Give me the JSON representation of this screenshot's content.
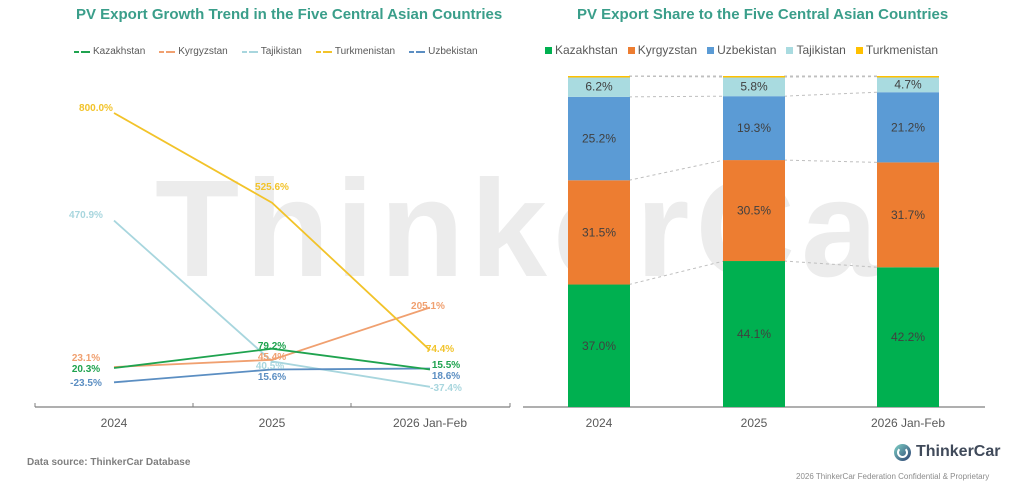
{
  "watermark": "ThinkerCar",
  "footer": {
    "data_source": "Data source: ThinkerCar Database",
    "brand": "ThinkerCar",
    "brand_icon": "thinkercar-logo-icon",
    "confidential": "2026 ThinkerCar Federation Confidential & Proprietary"
  },
  "colors": {
    "title": "#3a9e8a",
    "Kazakhstan": "#1fa34f",
    "Kyrgyzstan": "#f0a070",
    "Tajikistan": "#a8d6de",
    "Turkmenistan": "#f2c32a",
    "Uzbekistan": "#5b8ec2",
    "bar_Kazakhstan": "#00b050",
    "bar_Kyrgyzstan": "#ed7d31",
    "bar_Uzbekistan": "#5b9bd5",
    "bar_Tajikistan": "#a9dbe0",
    "bar_Turkmenistan": "#ffc000"
  },
  "chart_data": [
    {
      "type": "line",
      "title": "PV Export Growth Trend in the Five Central Asian Countries",
      "xlabel": "",
      "ylabel": "",
      "categories": [
        "2024",
        "2025",
        "2026 Jan-Feb"
      ],
      "legend_position": "top",
      "grid": false,
      "ylim": [
        -100,
        900
      ],
      "series": [
        {
          "name": "Kazakhstan",
          "values": [
            20.3,
            79.2,
            15.5
          ],
          "labels": [
            "20.3%",
            "79.2%",
            "15.5%"
          ]
        },
        {
          "name": "Kyrgyzstan",
          "values": [
            23.1,
            45.4,
            205.1
          ],
          "labels": [
            "23.1%",
            "45.4%",
            "205.1%"
          ]
        },
        {
          "name": "Tajikistan",
          "values": [
            470.9,
            40.5,
            -37.4
          ],
          "labels": [
            "470.9%",
            "40.5%",
            "-37.4%"
          ]
        },
        {
          "name": "Turkmenistan",
          "values": [
            800.0,
            525.6,
            74.4
          ],
          "labels": [
            "800.0%",
            "525.6%",
            "74.4%"
          ]
        },
        {
          "name": "Uzbekistan",
          "values": [
            -23.5,
            15.6,
            18.6
          ],
          "labels": [
            "-23.5%",
            "15.6%",
            "18.6%"
          ]
        }
      ]
    },
    {
      "type": "bar",
      "stacked": true,
      "title": "PV Export Share to the Five Central Asian Countries",
      "xlabel": "",
      "ylabel": "",
      "categories": [
        "2024",
        "2025",
        "2026 Jan-Feb"
      ],
      "legend_position": "top",
      "grid": false,
      "ylim": [
        0,
        100
      ],
      "series": [
        {
          "name": "Kazakhstan",
          "values": [
            37.0,
            44.1,
            42.2
          ],
          "labels": [
            "37.0%",
            "44.1%",
            "42.2%"
          ]
        },
        {
          "name": "Kyrgyzstan",
          "values": [
            31.5,
            30.5,
            31.7
          ],
          "labels": [
            "31.5%",
            "30.5%",
            "31.7%"
          ]
        },
        {
          "name": "Uzbekistan",
          "values": [
            25.2,
            19.3,
            21.2
          ],
          "labels": [
            "25.2%",
            "19.3%",
            "21.2%"
          ]
        },
        {
          "name": "Tajikistan",
          "values": [
            6.2,
            5.8,
            4.7
          ],
          "labels": [
            "6.2%",
            "5.8%",
            "4.7%"
          ]
        },
        {
          "name": "Turkmenistan",
          "values": [
            0.1,
            0.3,
            0.2
          ],
          "labels": [
            "",
            "",
            ""
          ]
        }
      ]
    }
  ]
}
